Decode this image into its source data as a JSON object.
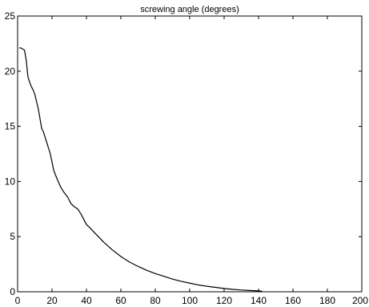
{
  "chart_data": {
    "type": "line",
    "title": "screwing angle (degrees)",
    "xlabel": "",
    "ylabel": "",
    "xlim": [
      0,
      200
    ],
    "ylim": [
      0,
      25
    ],
    "x_ticks": [
      0,
      20,
      40,
      60,
      80,
      100,
      120,
      140,
      160,
      180,
      200
    ],
    "y_ticks": [
      0,
      5,
      10,
      15,
      20,
      25
    ],
    "grid": false,
    "line_color": "#000000",
    "series": [
      {
        "x": [
          1,
          2,
          3,
          4,
          5,
          6,
          7,
          8,
          9,
          10,
          12,
          14,
          15,
          17,
          19,
          21,
          23,
          25,
          27,
          29,
          31,
          33,
          35,
          37,
          39,
          40,
          42,
          45,
          50,
          55,
          60,
          65,
          70,
          75,
          80,
          85,
          90,
          95,
          100,
          105,
          110,
          115,
          120,
          125,
          130,
          135,
          140,
          142
        ],
        "values": [
          22.1,
          22.1,
          22.0,
          21.9,
          21.0,
          19.5,
          19.0,
          18.6,
          18.3,
          17.9,
          16.6,
          14.8,
          14.5,
          13.5,
          12.5,
          11.0,
          10.2,
          9.5,
          9.0,
          8.6,
          8.0,
          7.7,
          7.5,
          7.0,
          6.4,
          6.1,
          5.8,
          5.3,
          4.5,
          3.8,
          3.2,
          2.7,
          2.3,
          1.95,
          1.65,
          1.4,
          1.15,
          0.95,
          0.78,
          0.62,
          0.5,
          0.4,
          0.3,
          0.22,
          0.16,
          0.12,
          0.08,
          0.06
        ]
      }
    ]
  }
}
